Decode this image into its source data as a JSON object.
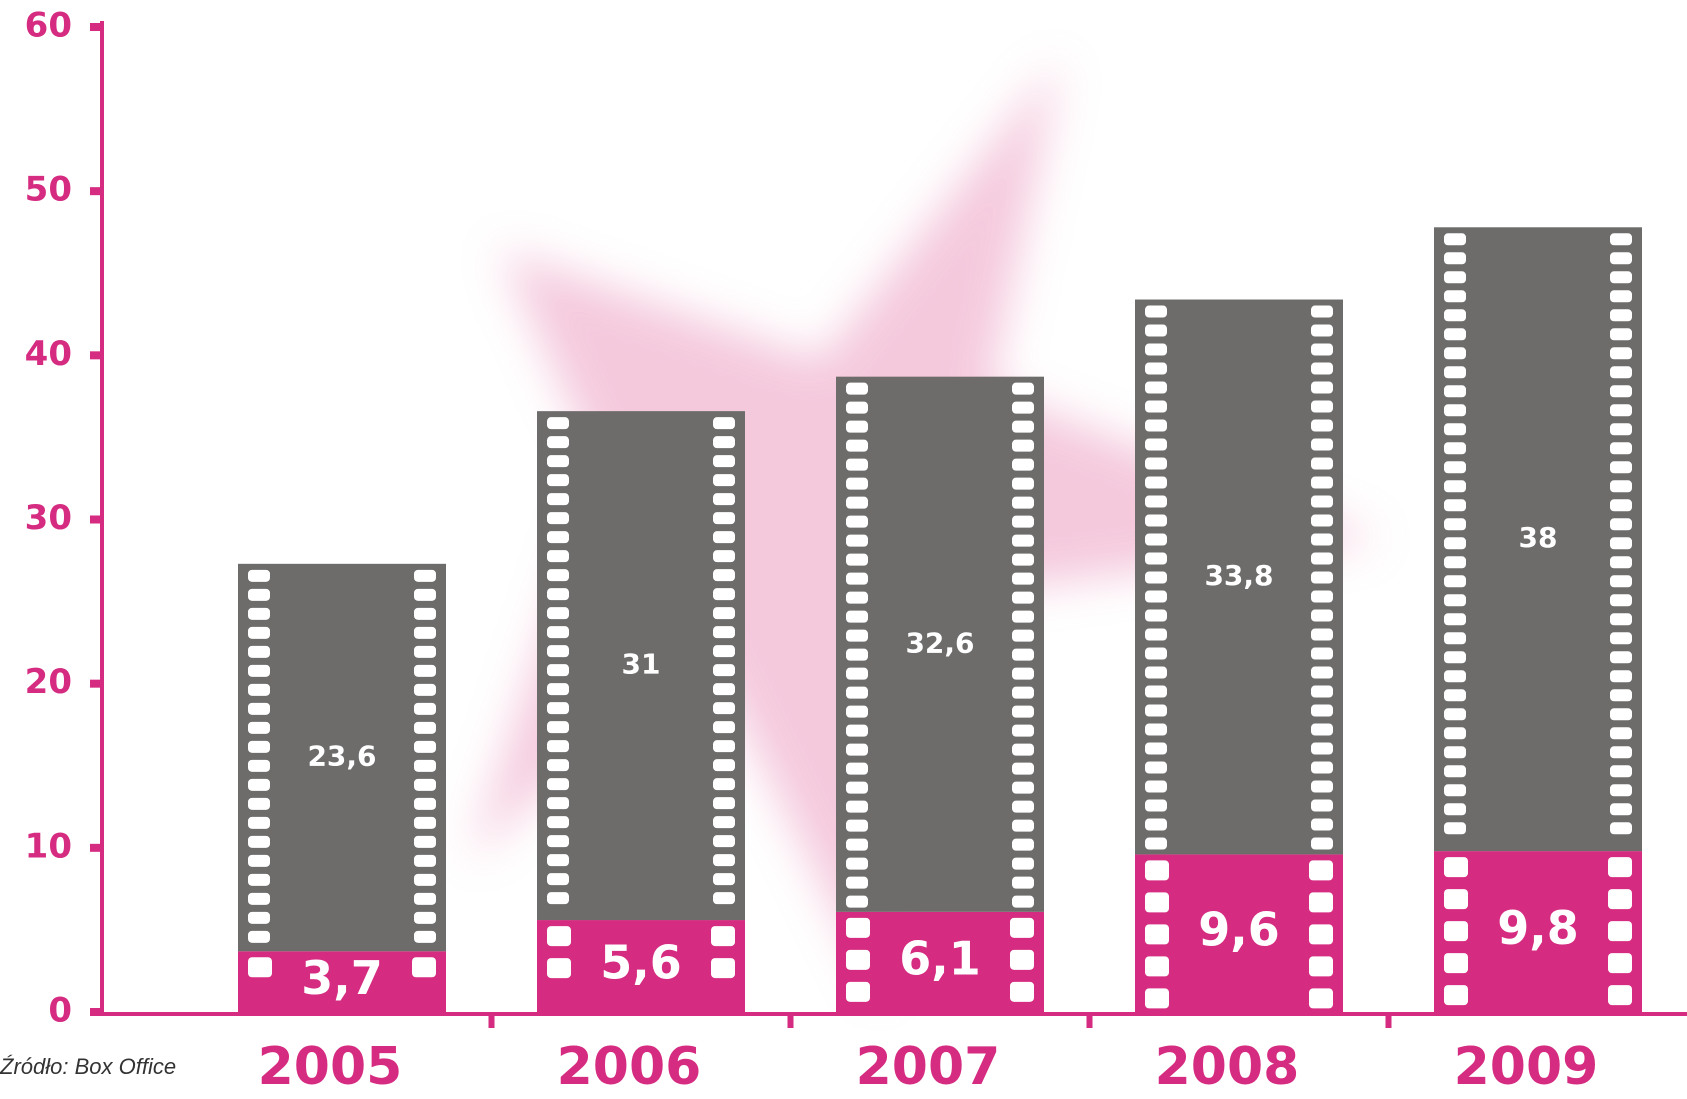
{
  "chart_data": {
    "type": "bar",
    "stacked": true,
    "categories": [
      "2005",
      "2006",
      "2007",
      "2008",
      "2009"
    ],
    "series": [
      {
        "color": "#d52b80",
        "values": [
          3.7,
          5.6,
          6.1,
          9.6,
          9.8
        ],
        "value_labels": [
          "3,7",
          "5,6",
          "6,1",
          "9,6",
          "9,8"
        ]
      },
      {
        "color": "#6d6c6b",
        "values": [
          23.6,
          31,
          32.6,
          33.8,
          38
        ],
        "value_labels": [
          "23,6",
          "31",
          "32,6",
          "33,8",
          "38"
        ]
      }
    ],
    "ylim": [
      0,
      60
    ],
    "yticks": [
      0,
      10,
      20,
      30,
      40,
      50,
      60
    ],
    "axis_color": "#d52b80",
    "source": "Źródło: Box Office"
  }
}
